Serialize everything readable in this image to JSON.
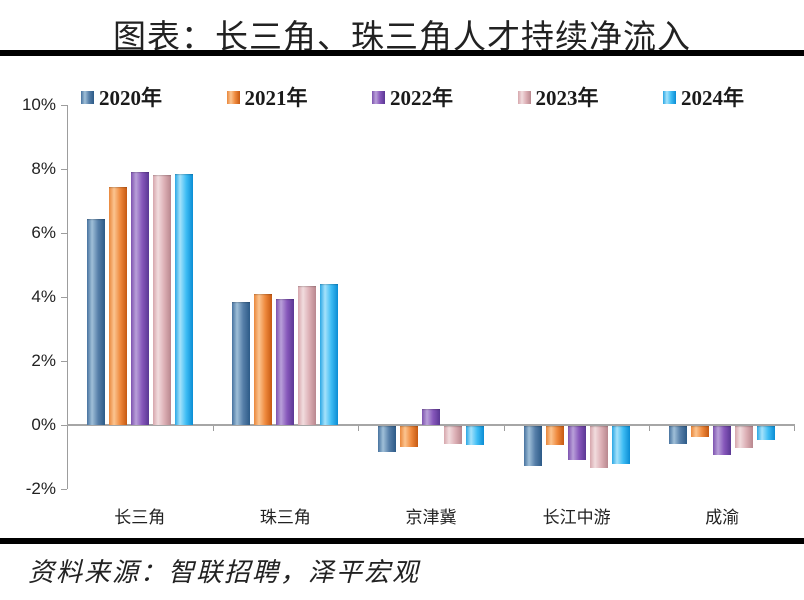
{
  "page": {
    "title": "图表：长三角、珠三角人才持续净流入",
    "source": "资料来源：智联招聘，泽平宏观"
  },
  "chart_data": {
    "type": "bar",
    "title": "图表：长三角、珠三角人才持续净流入",
    "xlabel": "",
    "ylabel": "",
    "ylim": [
      -2,
      10
    ],
    "ytick_step": 2,
    "yticks": [
      "10%",
      "8%",
      "6%",
      "4%",
      "2%",
      "0%",
      "-2%"
    ],
    "grid": false,
    "legend_position": "top",
    "axis_color": "#9d9d9d",
    "categories": [
      "长三角",
      "珠三角",
      "京津冀",
      "长江中游",
      "成渝"
    ],
    "series": [
      {
        "name": "2020年",
        "color": "#5E87B0",
        "gradient": [
          "#47729f",
          "#9fbfd8",
          "#567fa9",
          "#2c5a87"
        ],
        "values": [
          6.45,
          3.85,
          -0.8,
          -1.25,
          -0.55
        ]
      },
      {
        "name": "2021年",
        "color": "#EF8A3E",
        "gradient": [
          "#e9873b",
          "#fbc490",
          "#ef8a3e",
          "#c65911"
        ],
        "values": [
          7.45,
          4.1,
          -0.65,
          -0.6,
          -0.35
        ]
      },
      {
        "name": "2022年",
        "color": "#8757BB",
        "gradient": [
          "#7d53af",
          "#b9a0d9",
          "#8757bb",
          "#5a3794"
        ],
        "values": [
          7.9,
          3.95,
          0.5,
          -1.05,
          -0.9
        ]
      },
      {
        "name": "2023年",
        "color": "#DDB0B6",
        "gradient": [
          "#d6a6ac",
          "#f1dcde",
          "#ddb0b6",
          "#b8878e"
        ],
        "values": [
          7.8,
          4.35,
          -0.55,
          -1.3,
          -0.7
        ]
      },
      {
        "name": "2024年",
        "color": "#3FBDF4",
        "gradient": [
          "#2ba7e4",
          "#a5e2fb",
          "#3fbdf4",
          "#0a8cd4"
        ],
        "values": [
          7.85,
          4.4,
          -0.6,
          -1.2,
          -0.45
        ]
      }
    ]
  }
}
